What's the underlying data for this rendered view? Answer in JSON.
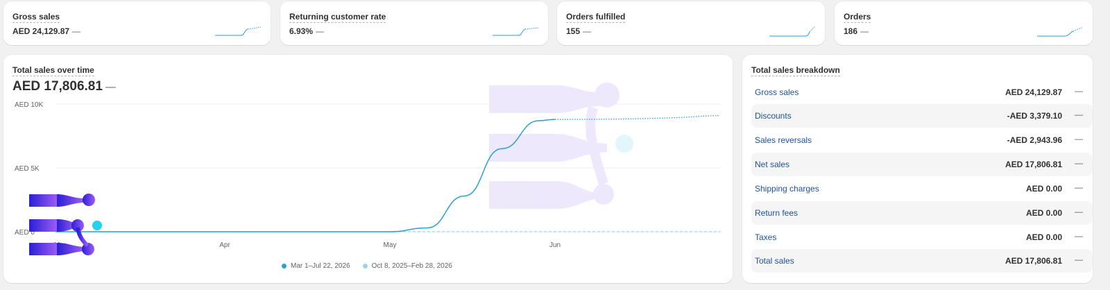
{
  "metrics": [
    {
      "title": "Gross sales",
      "value": "AED 24,129.87",
      "trend": "—"
    },
    {
      "title": "Returning customer rate",
      "value": "6.93%",
      "trend": "—"
    },
    {
      "title": "Orders fulfilled",
      "value": "155",
      "trend": "—"
    },
    {
      "title": "Orders",
      "value": "186",
      "trend": "—"
    }
  ],
  "sales_over_time": {
    "title": "Total sales over time",
    "value": "AED 17,806.81",
    "trend": "—",
    "y_ticks": [
      "AED 10K",
      "AED 5K",
      "AED 0"
    ],
    "x_ticks": [
      "Mar",
      "Apr",
      "May",
      "Jun"
    ],
    "legend": [
      {
        "label": "Mar 1–Jul 22, 2026",
        "color": "#2a9fd6"
      },
      {
        "label": "Oct 8, 2025–Feb 28, 2026",
        "color": "#9ed0e6"
      }
    ]
  },
  "chart_data": {
    "type": "line",
    "title": "Total sales over time",
    "xlabel": "",
    "ylabel": "",
    "x_ticks": [
      "Mar",
      "Apr",
      "May",
      "Jun"
    ],
    "ylim": [
      0,
      10000
    ],
    "y_ticks": [
      0,
      5000,
      10000
    ],
    "grid": true,
    "legend_position": "bottom",
    "series": [
      {
        "name": "Mar 1–Jul 22, 2026",
        "color": "#2a9fd6",
        "style": "solid then dotted",
        "x": [
          "Mar 1",
          "Apr 1",
          "May 1",
          "May 8",
          "May 15",
          "May 22",
          "May 29",
          "Jun 1",
          "Jul 22"
        ],
        "values": [
          0,
          0,
          0,
          300,
          2800,
          6500,
          8700,
          8800,
          9100
        ]
      },
      {
        "name": "Oct 8, 2025–Feb 28, 2026",
        "color": "#9ed0e6",
        "style": "dashed",
        "x": [
          "Mar 1",
          "Jul 22"
        ],
        "values": [
          0,
          0
        ]
      }
    ]
  },
  "breakdown": {
    "title": "Total sales breakdown",
    "trend": "—",
    "rows": [
      {
        "label": "Gross sales",
        "value": "AED 24,129.87"
      },
      {
        "label": "Discounts",
        "value": "-AED 3,379.10"
      },
      {
        "label": "Sales reversals",
        "value": "-AED 2,943.96"
      },
      {
        "label": "Net sales",
        "value": "AED 17,806.81"
      },
      {
        "label": "Shipping charges",
        "value": "AED 0.00"
      },
      {
        "label": "Return fees",
        "value": "AED 0.00"
      },
      {
        "label": "Taxes",
        "value": "AED 0.00"
      },
      {
        "label": "Total sales",
        "value": "AED 17,806.81"
      }
    ]
  }
}
